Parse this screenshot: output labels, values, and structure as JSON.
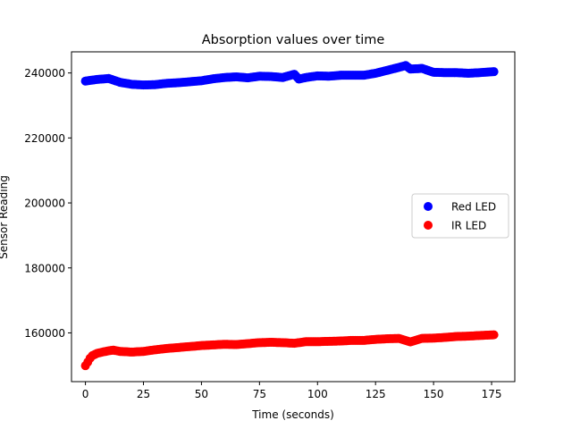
{
  "chart_data": {
    "type": "scatter",
    "title": "Absorption values over time",
    "xlabel": "Time (seconds)",
    "ylabel": "Sensor Reading",
    "xlim": [
      -6,
      185
    ],
    "ylim": [
      145000,
      246500
    ],
    "xticks": [
      0,
      25,
      50,
      75,
      100,
      125,
      150,
      175
    ],
    "yticks": [
      160000,
      180000,
      200000,
      220000,
      240000
    ],
    "grid": false,
    "legend": "center-right",
    "series": [
      {
        "name": "Red LED",
        "color": "#0000ff",
        "x": [
          0,
          5,
          10,
          15,
          20,
          25,
          30,
          35,
          40,
          45,
          50,
          55,
          60,
          65,
          70,
          75,
          80,
          85,
          90,
          92,
          95,
          100,
          105,
          110,
          115,
          120,
          125,
          130,
          135,
          138,
          140,
          145,
          150,
          155,
          160,
          165,
          170,
          176
        ],
        "y": [
          237500,
          238000,
          238300,
          237100,
          236500,
          236300,
          236400,
          236800,
          237000,
          237300,
          237600,
          238200,
          238600,
          238800,
          238500,
          239000,
          238900,
          238600,
          239600,
          238100,
          238600,
          239100,
          239000,
          239300,
          239300,
          239300,
          239900,
          240800,
          241700,
          242300,
          241200,
          241400,
          240200,
          240100,
          240100,
          239900,
          240100,
          240400
        ]
      },
      {
        "name": "IR LED",
        "color": "#ff0000",
        "x": [
          0,
          1,
          2,
          3,
          5,
          8,
          10,
          12,
          15,
          20,
          25,
          30,
          35,
          40,
          45,
          50,
          55,
          60,
          65,
          70,
          75,
          80,
          85,
          90,
          95,
          100,
          105,
          110,
          115,
          120,
          125,
          130,
          135,
          140,
          145,
          150,
          155,
          160,
          165,
          170,
          176
        ],
        "y": [
          149900,
          151000,
          152200,
          153000,
          153700,
          154200,
          154500,
          154700,
          154300,
          154100,
          154300,
          154800,
          155200,
          155500,
          155800,
          156100,
          156300,
          156500,
          156400,
          156700,
          157000,
          157100,
          157000,
          156800,
          157300,
          157300,
          157400,
          157500,
          157700,
          157700,
          158000,
          158200,
          158300,
          157200,
          158300,
          158400,
          158600,
          158900,
          159000,
          159200,
          159400
        ]
      }
    ]
  }
}
